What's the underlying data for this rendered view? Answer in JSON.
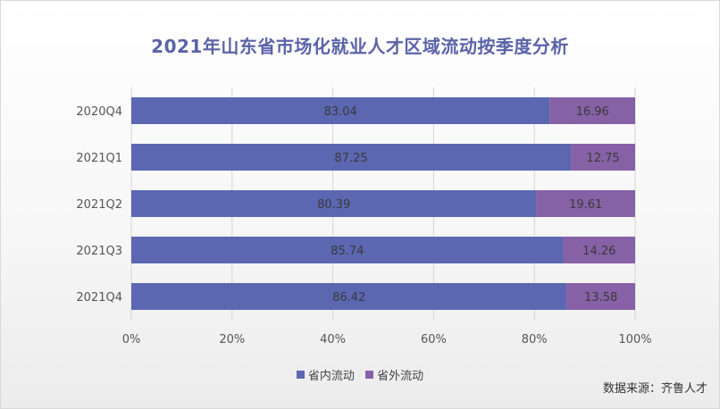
{
  "chart_data": {
    "type": "bar",
    "orientation": "horizontal",
    "stacked": true,
    "title": "2021年山东省市场化就业人才区域流动按季度分析",
    "categories": [
      "2020Q4",
      "2021Q1",
      "2021Q2",
      "2021Q3",
      "2021Q4"
    ],
    "series": [
      {
        "name": "省内流动",
        "color": "#5b67b1",
        "values": [
          83.04,
          87.25,
          80.39,
          85.74,
          86.42
        ]
      },
      {
        "name": "省外流动",
        "color": "#8661a5",
        "values": [
          16.96,
          12.75,
          19.61,
          14.26,
          13.58
        ]
      }
    ],
    "xlim": [
      0,
      100
    ],
    "x_ticks": [
      "0%",
      "20%",
      "40%",
      "60%",
      "80%",
      "100%"
    ],
    "grid": true,
    "legend_position": "bottom"
  },
  "source_text": "数据来源：齐鲁人才"
}
